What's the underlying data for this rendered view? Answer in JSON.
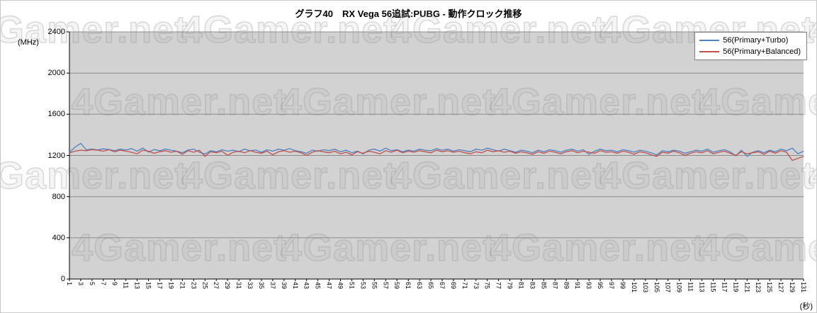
{
  "watermark": "4Gamer.net",
  "chart_data": {
    "type": "line",
    "title": "グラフ40　RX Vega 56追試:PUBG - 動作クロック推移",
    "xlabel": "(秒)",
    "ylabel": "(MHz)",
    "ylim": [
      0,
      2400
    ],
    "y_ticks": [
      0,
      400,
      800,
      1200,
      1600,
      2000,
      2400
    ],
    "x_start": 1,
    "x_step": 1,
    "x_tick_labels": [
      1,
      3,
      5,
      7,
      9,
      11,
      13,
      15,
      17,
      19,
      21,
      23,
      25,
      27,
      29,
      31,
      33,
      35,
      37,
      39,
      41,
      43,
      45,
      47,
      49,
      51,
      53,
      55,
      57,
      59,
      61,
      63,
      65,
      67,
      69,
      71,
      73,
      75,
      77,
      79,
      81,
      83,
      85,
      87,
      89,
      91,
      93,
      95,
      97,
      99,
      101,
      103,
      105,
      107,
      109,
      111,
      113,
      115,
      117,
      119,
      121,
      123,
      125,
      127,
      129,
      131
    ],
    "grid": "horizontal",
    "legend_position": "top-right",
    "plot_background": "#d2d2d2",
    "series": [
      {
        "name": "56(Primary+Turbo)",
        "color": "#4f81bd",
        "values": [
          1230,
          1281,
          1317,
          1255,
          1262,
          1253,
          1264,
          1258,
          1247,
          1262,
          1253,
          1266,
          1241,
          1272,
          1232,
          1257,
          1246,
          1262,
          1251,
          1241,
          1226,
          1252,
          1261,
          1232,
          1214,
          1246,
          1236,
          1256,
          1241,
          1251,
          1236,
          1261,
          1246,
          1252,
          1231,
          1256,
          1241,
          1261,
          1251,
          1266,
          1246,
          1236,
          1221,
          1251,
          1241,
          1256,
          1246,
          1261,
          1236,
          1251,
          1226,
          1241,
          1216,
          1251,
          1261,
          1241,
          1271,
          1246,
          1256,
          1236,
          1251,
          1241,
          1261,
          1251,
          1246,
          1266,
          1251,
          1261,
          1241,
          1256,
          1246,
          1236,
          1261,
          1251,
          1271,
          1256,
          1241,
          1261,
          1246,
          1231,
          1251,
          1241,
          1226,
          1251,
          1236,
          1256,
          1246,
          1231,
          1251,
          1261,
          1241,
          1256,
          1211,
          1241,
          1261,
          1246,
          1251,
          1236,
          1256,
          1246,
          1231,
          1251,
          1241,
          1226,
          1206,
          1246,
          1236,
          1251,
          1241,
          1221,
          1236,
          1251,
          1241,
          1261,
          1231,
          1246,
          1256,
          1236,
          1196,
          1251,
          1191,
          1231,
          1246,
          1226,
          1251,
          1236,
          1261,
          1246,
          1271,
          1216,
          1241
        ]
      },
      {
        "name": "56(Primary+Balanced)",
        "color": "#c0504d",
        "values": [
          1224,
          1242,
          1251,
          1246,
          1256,
          1251,
          1241,
          1256,
          1236,
          1251,
          1241,
          1231,
          1216,
          1251,
          1241,
          1221,
          1236,
          1246,
          1231,
          1241,
          1211,
          1246,
          1231,
          1251,
          1191,
          1236,
          1226,
          1241,
          1201,
          1231,
          1241,
          1226,
          1246,
          1231,
          1221,
          1241,
          1206,
          1236,
          1246,
          1231,
          1241,
          1226,
          1201,
          1231,
          1246,
          1236,
          1226,
          1241,
          1216,
          1231,
          1206,
          1236,
          1221,
          1241,
          1231,
          1216,
          1246,
          1231,
          1251,
          1226,
          1241,
          1231,
          1246,
          1236,
          1226,
          1251,
          1236,
          1246,
          1231,
          1241,
          1226,
          1216,
          1236,
          1226,
          1251,
          1236,
          1246,
          1231,
          1241,
          1221,
          1236,
          1226,
          1211,
          1236,
          1221,
          1241,
          1231,
          1216,
          1236,
          1246,
          1226,
          1241,
          1231,
          1221,
          1246,
          1231,
          1236,
          1221,
          1241,
          1231,
          1211,
          1236,
          1226,
          1206,
          1191,
          1231,
          1221,
          1241,
          1226,
          1201,
          1221,
          1236,
          1226,
          1246,
          1216,
          1231,
          1241,
          1221,
          1201,
          1236,
          1216,
          1226,
          1236,
          1211,
          1241,
          1221,
          1246,
          1231,
          1151,
          1171,
          1191
        ]
      }
    ]
  }
}
